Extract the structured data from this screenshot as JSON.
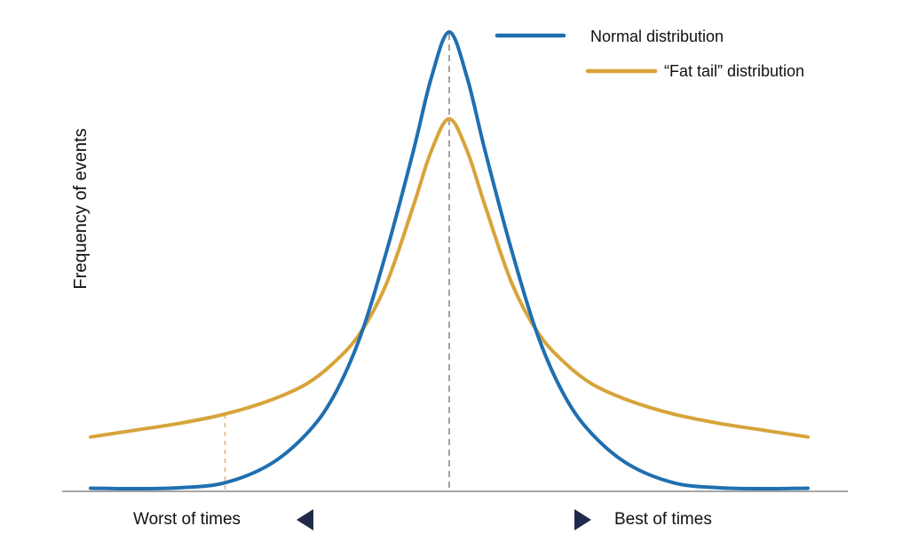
{
  "chart_data": {
    "type": "line",
    "ylabel": "Frequency of events",
    "xlabels": {
      "left": "Worst of times",
      "right": "Best of times"
    },
    "colors": {
      "normal": "#1f6fb0",
      "fat_tail": "#d7a43a",
      "axis": "#888888",
      "arrow": "#1f2a4a"
    },
    "x": [
      -4,
      -3.5,
      -3,
      -2.5,
      -2,
      -1.6,
      -1.3,
      -1,
      -0.7,
      -0.4,
      -0.2,
      0,
      0.2,
      0.4,
      0.7,
      1,
      1.3,
      1.6,
      2,
      2.5,
      3,
      3.5,
      4
    ],
    "series": [
      {
        "name": "Normal distribution",
        "key": "normal",
        "values": [
          0.003,
          0.002,
          0.004,
          0.015,
          0.055,
          0.12,
          0.2,
          0.33,
          0.52,
          0.74,
          0.9,
          1.0,
          0.9,
          0.74,
          0.52,
          0.33,
          0.2,
          0.12,
          0.055,
          0.015,
          0.004,
          0.002,
          0.003
        ]
      },
      {
        "name": "“Fat tail” distribution",
        "key": "fat_tail",
        "values": [
          0.115,
          0.13,
          0.145,
          0.165,
          0.195,
          0.23,
          0.275,
          0.34,
          0.45,
          0.62,
          0.74,
          0.81,
          0.74,
          0.62,
          0.45,
          0.34,
          0.275,
          0.23,
          0.195,
          0.165,
          0.145,
          0.13,
          0.115
        ]
      }
    ],
    "markers": {
      "center_x": 0,
      "left_tail_x": -2.5
    },
    "legend_position": "top-right",
    "grid": false
  }
}
